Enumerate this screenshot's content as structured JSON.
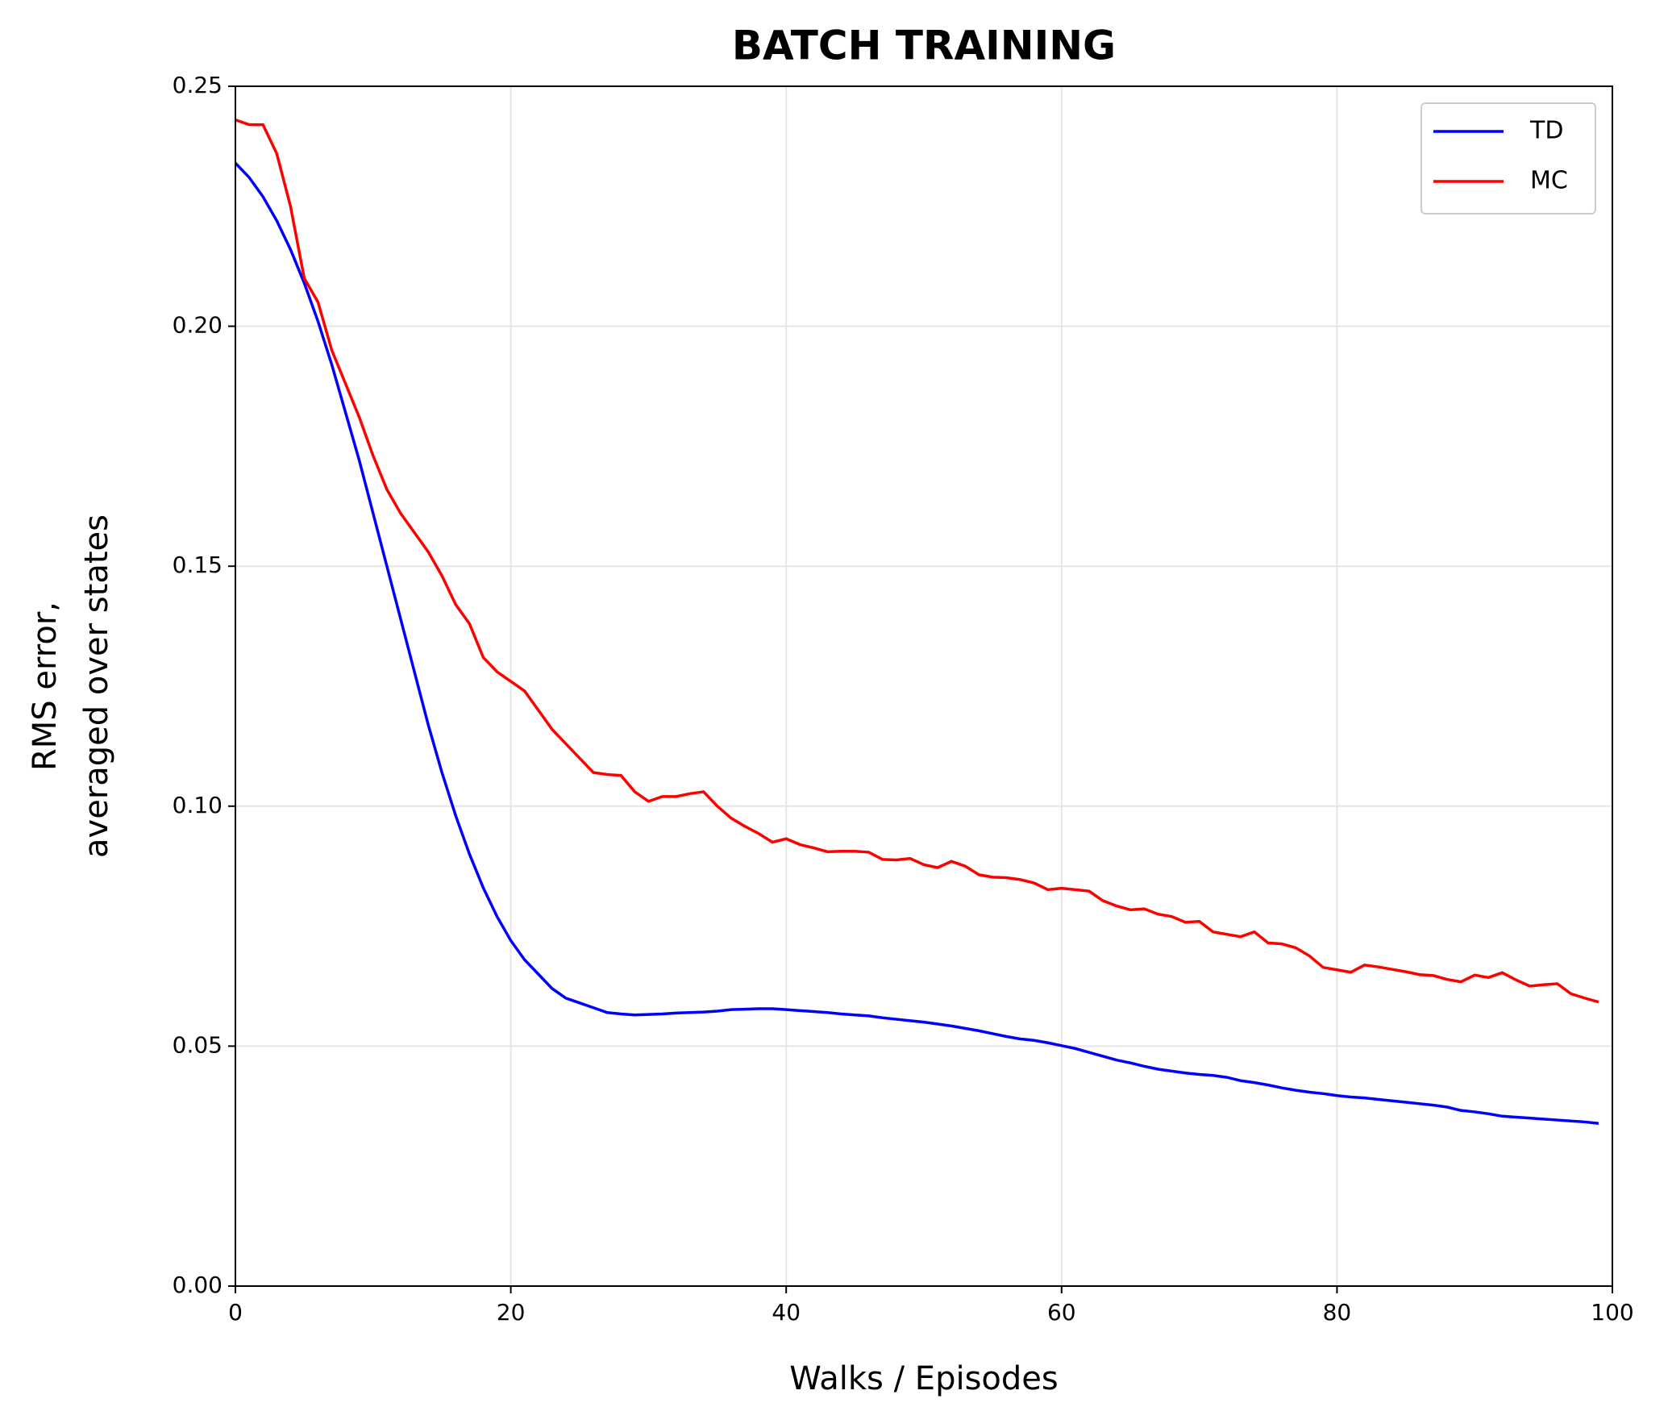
{
  "chart_data": {
    "type": "line",
    "title": "BATCH TRAINING",
    "xlabel": "Walks / Episodes",
    "ylabel": [
      "RMS error,",
      "averaged over states"
    ],
    "x": [
      0,
      1,
      2,
      3,
      4,
      5,
      6,
      7,
      8,
      9,
      10,
      11,
      12,
      13,
      14,
      15,
      16,
      17,
      18,
      19,
      20,
      21,
      22,
      23,
      24,
      25,
      26,
      27,
      28,
      29,
      30,
      31,
      32,
      33,
      34,
      35,
      36,
      37,
      38,
      39,
      40,
      41,
      42,
      43,
      44,
      45,
      46,
      47,
      48,
      49,
      50,
      51,
      52,
      53,
      54,
      55,
      56,
      57,
      58,
      59,
      60,
      61,
      62,
      63,
      64,
      65,
      66,
      67,
      68,
      69,
      70,
      71,
      72,
      73,
      74,
      75,
      76,
      77,
      78,
      79,
      80,
      81,
      82,
      83,
      84,
      85,
      86,
      87,
      88,
      89,
      90,
      91,
      92,
      93,
      94,
      95,
      96,
      97,
      98,
      99
    ],
    "series": [
      {
        "name": "TD",
        "color": "#0000ff",
        "values": [
          0.234,
          0.231,
          0.227,
          0.222,
          0.216,
          0.209,
          0.201,
          0.192,
          0.182,
          0.172,
          0.161,
          0.15,
          0.139,
          0.128,
          0.117,
          0.107,
          0.098,
          0.09,
          0.083,
          0.077,
          0.072,
          0.068,
          0.065,
          0.062,
          0.06,
          0.059,
          0.058,
          0.057,
          0.0567,
          0.0565,
          0.0566,
          0.0567,
          0.0569,
          0.057,
          0.0571,
          0.0573,
          0.0576,
          0.0577,
          0.0578,
          0.0578,
          0.0576,
          0.0574,
          0.0572,
          0.057,
          0.0567,
          0.0565,
          0.0563,
          0.0559,
          0.0556,
          0.0553,
          0.055,
          0.0546,
          0.0542,
          0.0537,
          0.0532,
          0.0526,
          0.052,
          0.0515,
          0.0512,
          0.0507,
          0.0501,
          0.0495,
          0.0487,
          0.0479,
          0.0471,
          0.0465,
          0.0458,
          0.0452,
          0.0448,
          0.0444,
          0.0441,
          0.0439,
          0.0435,
          0.0428,
          0.0424,
          0.0419,
          0.0413,
          0.0408,
          0.0404,
          0.0401,
          0.0397,
          0.0394,
          0.0392,
          0.0389,
          0.0386,
          0.0383,
          0.038,
          0.0377,
          0.0373,
          0.0366,
          0.0363,
          0.0359,
          0.0354,
          0.0352,
          0.035,
          0.0348,
          0.0346,
          0.0344,
          0.0342,
          0.0339
        ]
      },
      {
        "name": "MC",
        "color": "#ff0000",
        "values": [
          0.243,
          0.242,
          0.242,
          0.236,
          0.225,
          0.21,
          0.205,
          0.195,
          0.188,
          0.181,
          0.173,
          0.166,
          0.161,
          0.157,
          0.153,
          0.148,
          0.142,
          0.138,
          0.131,
          0.128,
          0.126,
          0.124,
          0.12,
          0.116,
          0.113,
          0.11,
          0.107,
          0.1066,
          0.1064,
          0.103,
          0.101,
          0.102,
          0.102,
          0.1026,
          0.103,
          0.1,
          0.0975,
          0.0958,
          0.0943,
          0.0925,
          0.0932,
          0.092,
          0.0913,
          0.0905,
          0.0906,
          0.0906,
          0.0904,
          0.0889,
          0.0888,
          0.0891,
          0.0878,
          0.0872,
          0.0885,
          0.0875,
          0.0857,
          0.0852,
          0.0851,
          0.0847,
          0.084,
          0.0826,
          0.0829,
          0.0826,
          0.0823,
          0.0803,
          0.0792,
          0.0784,
          0.0786,
          0.0775,
          0.077,
          0.0758,
          0.076,
          0.0738,
          0.0733,
          0.0728,
          0.0738,
          0.0715,
          0.0713,
          0.0705,
          0.0688,
          0.0664,
          0.0659,
          0.0654,
          0.0669,
          0.0665,
          0.066,
          0.0655,
          0.0649,
          0.0647,
          0.0639,
          0.0634,
          0.0648,
          0.0643,
          0.0653,
          0.0638,
          0.0625,
          0.0628,
          0.063,
          0.0609,
          0.06,
          0.0592
        ]
      }
    ],
    "xlim": [
      0,
      100
    ],
    "xticks": [
      0,
      20,
      40,
      60,
      80,
      100
    ],
    "ylim": [
      0,
      0.25
    ],
    "yticks": [
      {
        "value": 0,
        "label": "0.00"
      },
      {
        "value": 0.05,
        "label": "0.05"
      },
      {
        "value": 0.1,
        "label": "0.10"
      },
      {
        "value": 0.15,
        "label": "0.15"
      },
      {
        "value": 0.2,
        "label": "0.20"
      },
      {
        "value": 0.25,
        "label": "0.25"
      }
    ],
    "grid": true,
    "legend": "upper right"
  }
}
